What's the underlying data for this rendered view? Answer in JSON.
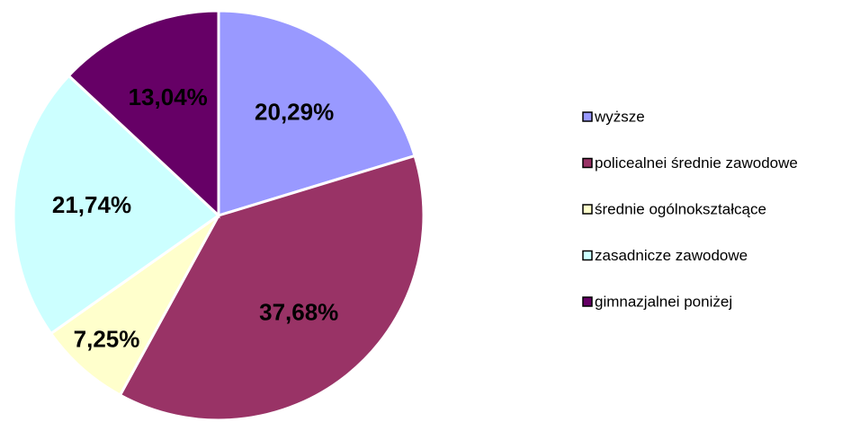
{
  "chart_data": {
    "type": "pie",
    "categories": [
      "wyższe",
      "policealnei średnie zawodowe",
      "średnie ogólnokształcące",
      "zasadnicze zawodowe",
      "gimnazjalnei poniżej"
    ],
    "values": [
      20.29,
      37.68,
      7.25,
      21.74,
      13.04
    ],
    "value_labels": [
      "20,29%",
      "37,68%",
      "7,25%",
      "21,74%",
      "13,04%"
    ],
    "colors": [
      "#9999ff",
      "#993366",
      "#ffffcc",
      "#ccffff",
      "#660066"
    ],
    "legend": "right"
  }
}
